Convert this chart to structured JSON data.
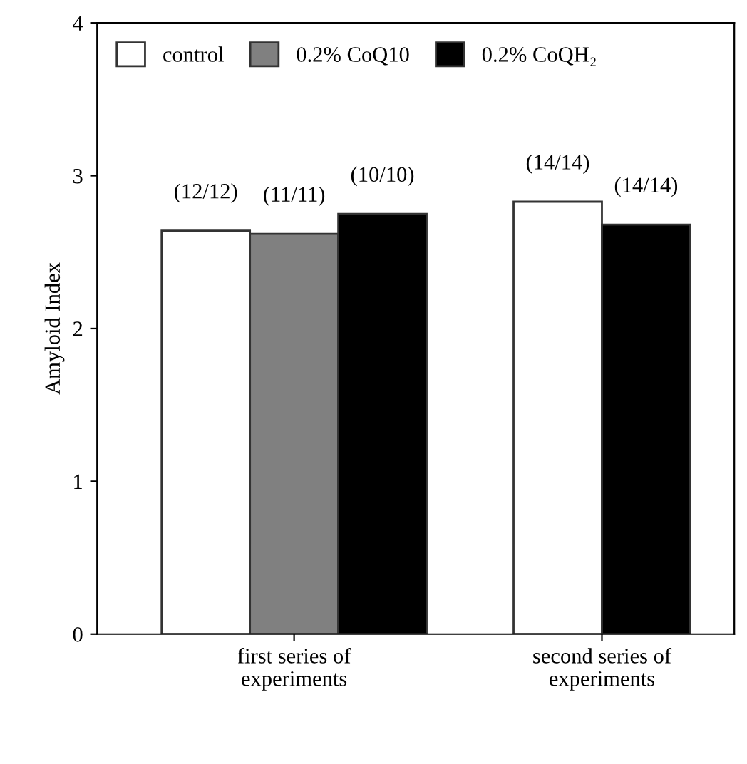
{
  "chart_data": {
    "type": "bar",
    "ylabel": "Amyloid Index",
    "categories": [
      "first series of\nexperiments",
      "second series of\nexperiments"
    ],
    "series": [
      {
        "name": "control",
        "color": "#ffffff",
        "values": [
          2.64,
          2.83
        ],
        "value_labels": [
          "(12/12)",
          "(14/14)"
        ]
      },
      {
        "name": "0.2% CoQ10",
        "color": "#808080",
        "values": [
          2.62,
          null
        ],
        "value_labels": [
          "(11/11)",
          null
        ]
      },
      {
        "name": "0.2% CoQH₂",
        "color": "#000000",
        "values": [
          2.75,
          2.68
        ],
        "value_labels": [
          "(10/10)",
          "(14/14)"
        ]
      }
    ],
    "ylim": [
      0,
      4
    ],
    "yticks": [
      0,
      1,
      2,
      3,
      4
    ],
    "grid": false,
    "legend": "top left"
  }
}
